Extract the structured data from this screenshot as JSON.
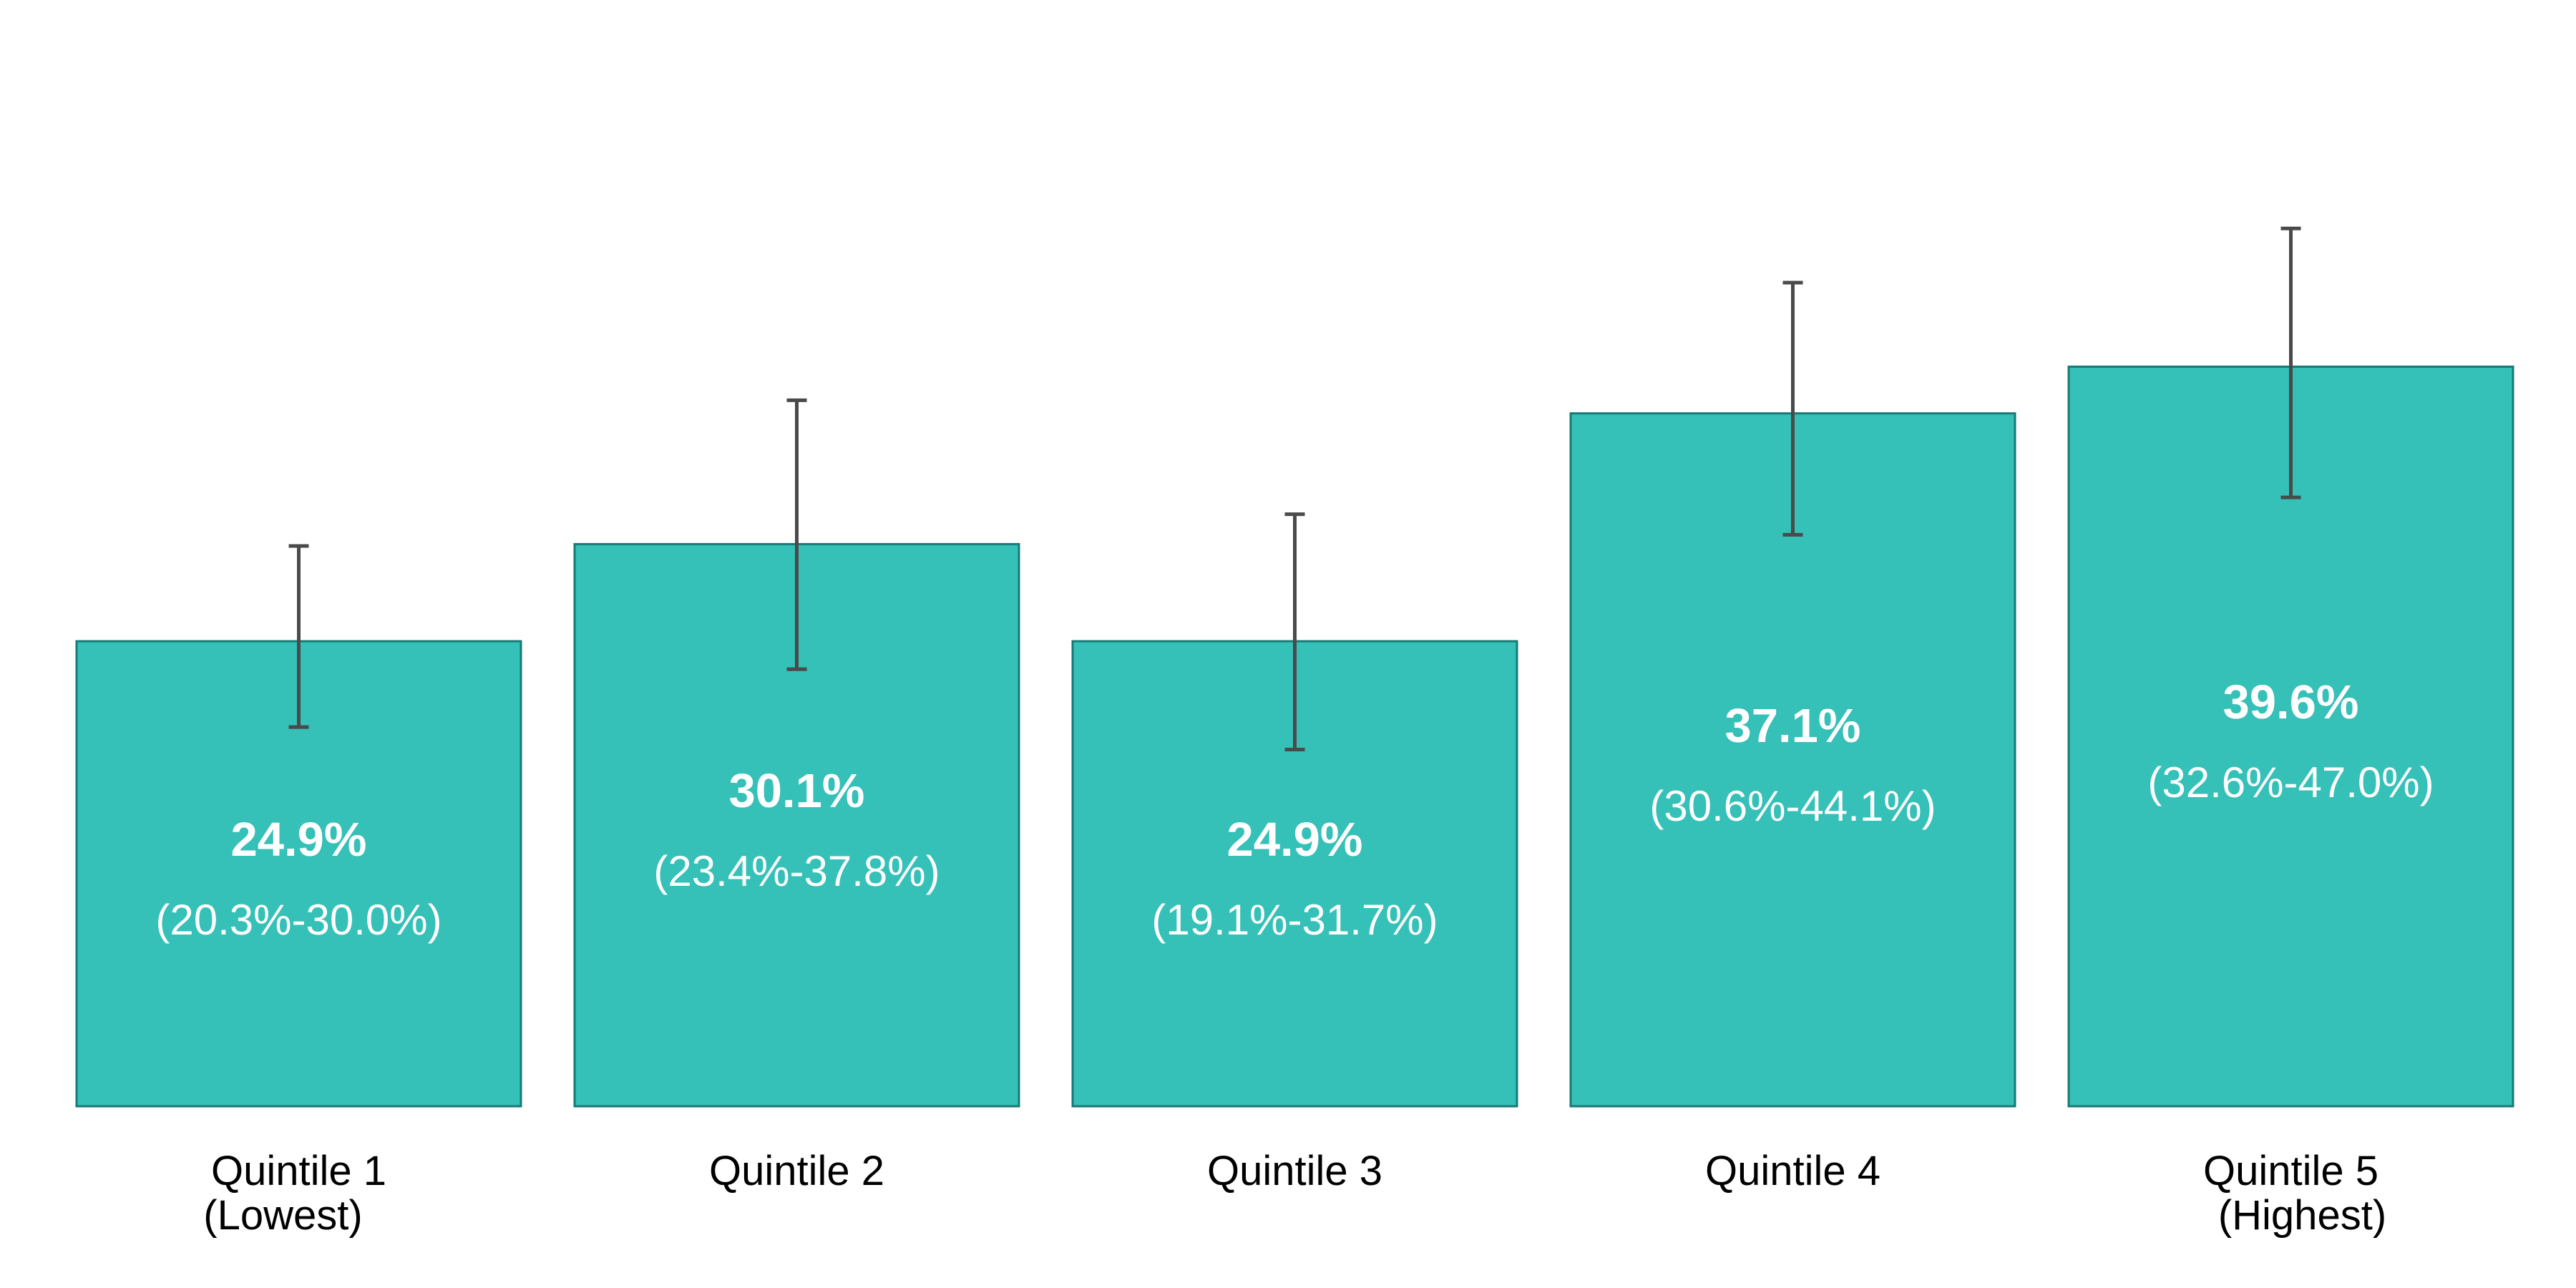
{
  "chart_data": {
    "type": "bar",
    "title": "",
    "xlabel": "",
    "ylabel": "",
    "ylim": [
      0,
      55
    ],
    "grid": false,
    "colors": {
      "bar_fill": "#35c0b8",
      "bar_stroke": "#167a76",
      "error_bar": "#4a4a4a",
      "value_text": "#ffffff",
      "category_text": "#000000"
    },
    "categories": [
      [
        "Quintile 1",
        "(Lowest)"
      ],
      [
        "Quintile 2"
      ],
      [
        "Quintile 3"
      ],
      [
        "Quintile 4"
      ],
      [
        "Quintile 5",
        "(Highest)"
      ]
    ],
    "values": [
      24.9,
      30.1,
      24.9,
      37.1,
      39.6
    ],
    "ci_low": [
      20.3,
      23.4,
      19.1,
      30.6,
      32.6
    ],
    "ci_high": [
      30.0,
      37.8,
      31.7,
      44.1,
      47.0
    ],
    "value_labels": [
      "24.9%",
      "30.1%",
      "24.9%",
      "37.1%",
      "39.6%"
    ],
    "ci_labels": [
      "(20.3%-30.0%)",
      "(23.4%-37.8%)",
      "(19.1%-31.7%)",
      "(30.6%-44.1%)",
      "(32.6%-47.0%)"
    ]
  }
}
